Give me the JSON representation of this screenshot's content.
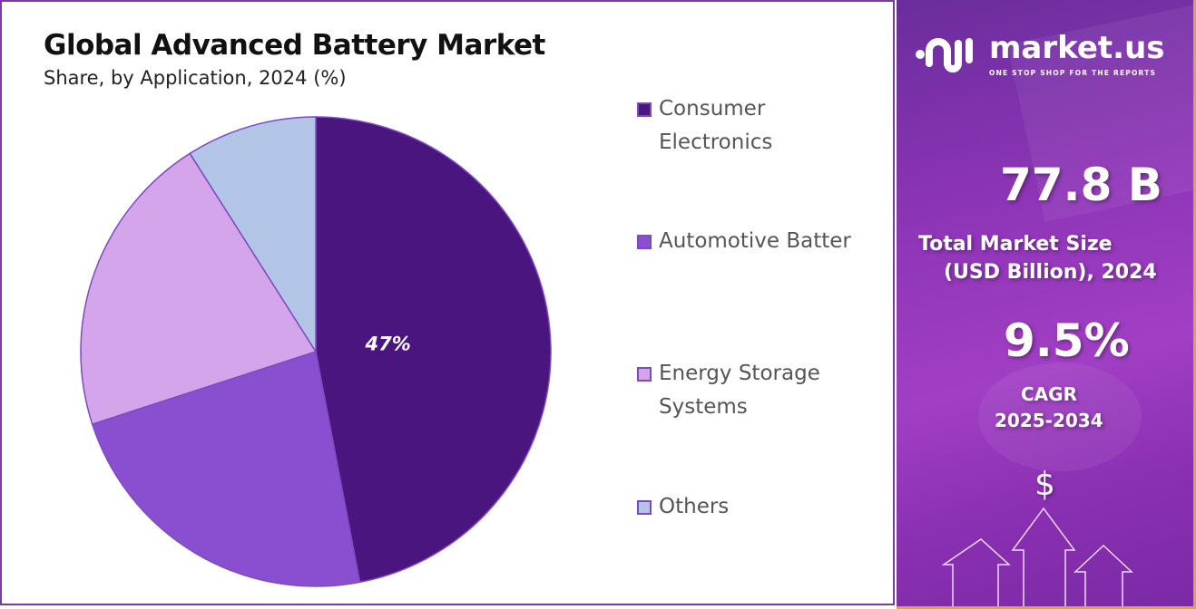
{
  "chart_data": {
    "type": "pie",
    "title": "Global Advanced Battery Market",
    "subtitle": "Share, by Application, 2024 (%)",
    "categories": [
      "Consumer Electronics",
      "Automotive Batter",
      "Energy Storage Systems",
      "Others"
    ],
    "values": [
      47,
      23,
      21,
      9
    ],
    "colors": [
      "#4b1580",
      "#8a4fd0",
      "#d4a5ea",
      "#b3c5e6"
    ],
    "data_labels": [
      "47%",
      "",
      "",
      ""
    ],
    "legend_placement": "right",
    "start_angle": "top, clockwise"
  },
  "legend": {
    "items": [
      {
        "line1": "Consumer",
        "line2": "Electronics"
      },
      {
        "line1": "Automotive Batter",
        "line2": ""
      },
      {
        "line1": "Energy Storage",
        "line2": "Systems"
      },
      {
        "line1": "Others",
        "line2": ""
      }
    ]
  },
  "panel": {
    "brand": "market.us",
    "tagline": "ONE STOP SHOP FOR THE REPORTS",
    "market_size": "77.8 B",
    "market_size_label_1": "Total Market Size",
    "market_size_label_2": "(USD Billion), 2024",
    "cagr": "9.5%",
    "cagr_label": "CAGR",
    "cagr_period": "2025-2034",
    "dollar_symbol": "$"
  }
}
